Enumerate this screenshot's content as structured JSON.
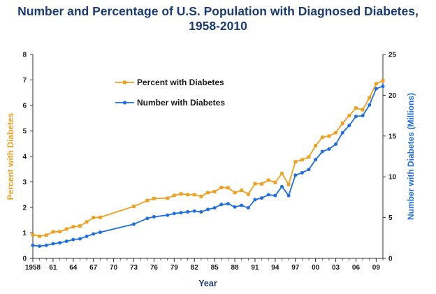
{
  "chart_data": {
    "type": "line",
    "title_line1": "Number and Percentage of U.S. Population with Diagnosed Diabetes,",
    "title_line2": "1958-2010",
    "xlabel": "Year",
    "ylabel_left": "Percent with Diabetes",
    "ylabel_right": "Number with Diabetes (Millions)",
    "xlim": [
      1958,
      2010
    ],
    "ylim_left": [
      0,
      8
    ],
    "ylim_right": [
      0,
      25
    ],
    "x_tick_values": [
      1958,
      1961,
      1964,
      1967,
      1970,
      1973,
      1976,
      1979,
      1982,
      1985,
      1988,
      1991,
      1994,
      1997,
      2000,
      2003,
      2006,
      2009
    ],
    "x_tick_labels": [
      "1958",
      "61",
      "64",
      "67",
      "70",
      "73",
      "76",
      "79",
      "82",
      "85",
      "88",
      "91",
      "94",
      "97",
      "00",
      "03",
      "06",
      "09"
    ],
    "y_left_ticks": [
      "0",
      "1",
      "2",
      "3",
      "4",
      "5",
      "6",
      "7",
      "8"
    ],
    "y_right_ticks": [
      "0",
      "5",
      "10",
      "15",
      "20",
      "25"
    ],
    "legend_position": "top-left inside",
    "colors": {
      "percent": "#f0a020",
      "number": "#1f6fe0",
      "title": "#1a3b73"
    },
    "series": [
      {
        "name": "Percent with Diabetes",
        "axis": "left",
        "x": [
          1958,
          1959,
          1960,
          1961,
          1962,
          1963,
          1964,
          1965,
          1966,
          1967,
          1968,
          1973,
          1975,
          1976,
          1978,
          1979,
          1980,
          1981,
          1982,
          1983,
          1984,
          1985,
          1986,
          1987,
          1988,
          1989,
          1990,
          1991,
          1992,
          1993,
          1994,
          1995,
          1996,
          1997,
          1998,
          1999,
          2000,
          2001,
          2002,
          2003,
          2004,
          2005,
          2006,
          2007,
          2008,
          2009,
          2010
        ],
        "y": [
          0.93,
          0.87,
          0.91,
          1.04,
          1.05,
          1.15,
          1.24,
          1.27,
          1.43,
          1.6,
          1.61,
          2.04,
          2.27,
          2.35,
          2.36,
          2.47,
          2.53,
          2.5,
          2.5,
          2.43,
          2.58,
          2.62,
          2.78,
          2.77,
          2.58,
          2.67,
          2.52,
          2.93,
          2.92,
          3.07,
          2.98,
          3.33,
          2.9,
          3.79,
          3.87,
          3.98,
          4.42,
          4.75,
          4.8,
          4.93,
          5.3,
          5.6,
          5.9,
          5.83,
          6.3,
          6.85,
          6.97
        ]
      },
      {
        "name": "Number with Diabetes",
        "axis": "right",
        "x": [
          1958,
          1959,
          1960,
          1961,
          1962,
          1963,
          1964,
          1965,
          1966,
          1967,
          1968,
          1973,
          1975,
          1976,
          1978,
          1979,
          1980,
          1981,
          1982,
          1983,
          1984,
          1985,
          1986,
          1987,
          1988,
          1989,
          1990,
          1991,
          1992,
          1993,
          1994,
          1995,
          1996,
          1997,
          1998,
          1999,
          2000,
          2001,
          2002,
          2003,
          2004,
          2005,
          2006,
          2007,
          2008,
          2009,
          2010
        ],
        "y": [
          1.6,
          1.5,
          1.6,
          1.8,
          1.9,
          2.1,
          2.3,
          2.4,
          2.7,
          3.0,
          3.2,
          4.2,
          4.9,
          5.1,
          5.3,
          5.5,
          5.6,
          5.7,
          5.8,
          5.7,
          6.0,
          6.2,
          6.6,
          6.7,
          6.3,
          6.5,
          6.2,
          7.2,
          7.4,
          7.8,
          7.7,
          8.8,
          7.7,
          10.2,
          10.5,
          10.9,
          12.1,
          13.1,
          13.4,
          14.0,
          15.4,
          16.3,
          17.4,
          17.5,
          18.8,
          20.8,
          21.1
        ]
      }
    ]
  }
}
